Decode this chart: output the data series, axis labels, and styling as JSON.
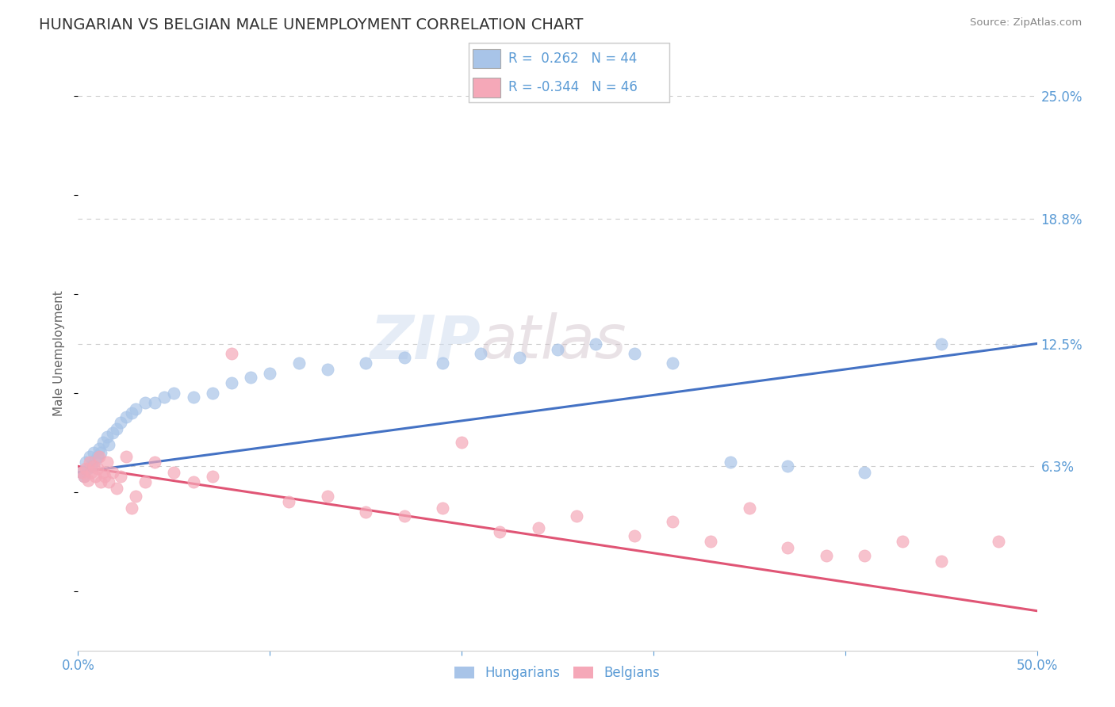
{
  "title": "HUNGARIAN VS BELGIAN MALE UNEMPLOYMENT CORRELATION CHART",
  "source": "Source: ZipAtlas.com",
  "ylabel": "Male Unemployment",
  "xlim": [
    0.0,
    0.5
  ],
  "ylim": [
    -0.03,
    0.27
  ],
  "right_ytick_vals": [
    0.25,
    0.188,
    0.125,
    0.063
  ],
  "right_yticklabels": [
    "25.0%",
    "18.8%",
    "12.5%",
    "6.3%"
  ],
  "blue_color": "#a8c4e8",
  "pink_color": "#f5a8b8",
  "line_blue": "#4472c4",
  "line_pink": "#e05575",
  "r_blue": 0.262,
  "n_blue": 44,
  "r_pink": -0.344,
  "n_pink": 46,
  "watermark_zip": "ZIP",
  "watermark_atlas": "atlas",
  "tick_color": "#5b9bd5",
  "axis_label_color": "#666666",
  "title_color": "#333333",
  "source_color": "#888888",
  "grid_color": "#cccccc",
  "background_color": "#ffffff",
  "hungarian_x": [
    0.002,
    0.003,
    0.004,
    0.005,
    0.006,
    0.007,
    0.008,
    0.009,
    0.01,
    0.011,
    0.012,
    0.013,
    0.015,
    0.016,
    0.018,
    0.02,
    0.022,
    0.025,
    0.028,
    0.03,
    0.035,
    0.04,
    0.045,
    0.05,
    0.06,
    0.07,
    0.08,
    0.09,
    0.1,
    0.115,
    0.13,
    0.15,
    0.17,
    0.19,
    0.21,
    0.23,
    0.25,
    0.27,
    0.29,
    0.31,
    0.34,
    0.37,
    0.41,
    0.45
  ],
  "hungarian_y": [
    0.06,
    0.058,
    0.065,
    0.062,
    0.068,
    0.063,
    0.07,
    0.066,
    0.068,
    0.072,
    0.07,
    0.075,
    0.078,
    0.074,
    0.08,
    0.082,
    0.085,
    0.088,
    0.09,
    0.092,
    0.095,
    0.095,
    0.098,
    0.1,
    0.098,
    0.1,
    0.105,
    0.108,
    0.11,
    0.115,
    0.112,
    0.115,
    0.118,
    0.115,
    0.12,
    0.118,
    0.122,
    0.125,
    0.12,
    0.115,
    0.065,
    0.063,
    0.06,
    0.125
  ],
  "belgian_x": [
    0.002,
    0.003,
    0.004,
    0.005,
    0.006,
    0.007,
    0.008,
    0.009,
    0.01,
    0.011,
    0.012,
    0.013,
    0.014,
    0.015,
    0.016,
    0.018,
    0.02,
    0.022,
    0.025,
    0.028,
    0.03,
    0.035,
    0.04,
    0.05,
    0.06,
    0.07,
    0.08,
    0.11,
    0.13,
    0.15,
    0.17,
    0.19,
    0.2,
    0.22,
    0.24,
    0.26,
    0.29,
    0.31,
    0.33,
    0.35,
    0.37,
    0.39,
    0.41,
    0.43,
    0.45,
    0.48
  ],
  "belgian_y": [
    0.06,
    0.058,
    0.062,
    0.056,
    0.065,
    0.06,
    0.063,
    0.058,
    0.062,
    0.068,
    0.055,
    0.06,
    0.058,
    0.065,
    0.055,
    0.06,
    0.052,
    0.058,
    0.068,
    0.042,
    0.048,
    0.055,
    0.065,
    0.06,
    0.055,
    0.058,
    0.12,
    0.045,
    0.048,
    0.04,
    0.038,
    0.042,
    0.075,
    0.03,
    0.032,
    0.038,
    0.028,
    0.035,
    0.025,
    0.042,
    0.022,
    0.018,
    0.018,
    0.025,
    0.015,
    0.025
  ]
}
